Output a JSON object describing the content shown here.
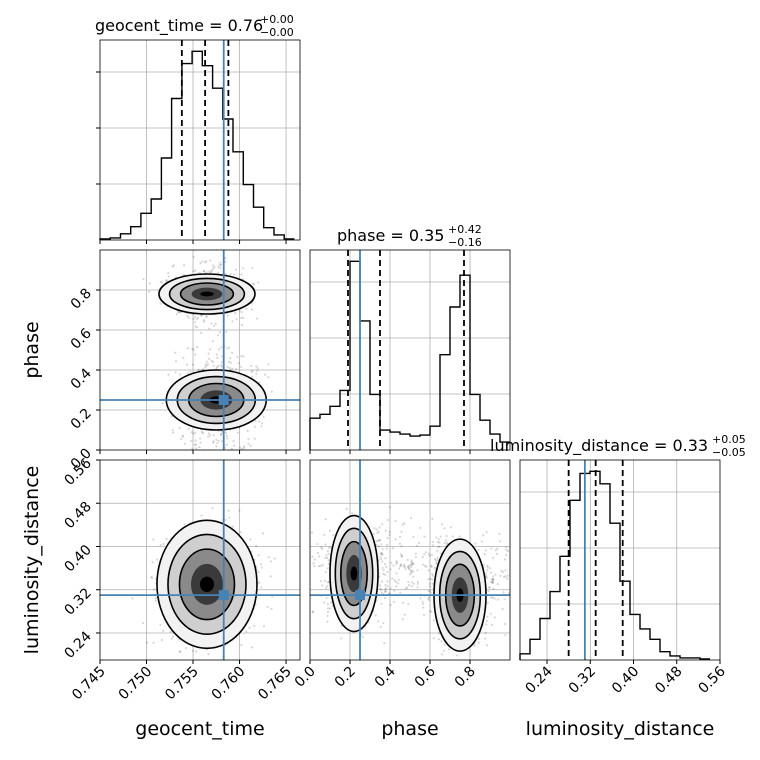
{
  "chart_data": {
    "type": "corner",
    "parameters": [
      "geocent_time",
      "phase",
      "luminosity_distance"
    ],
    "truths": {
      "geocent_time": 0.7583,
      "phase": 0.25,
      "luminosity_distance": 0.31
    },
    "titles": [
      {
        "param": "geocent_time",
        "text": "geocent_time = 0.76",
        "plus": "+0.00",
        "minus": "−0.00"
      },
      {
        "param": "phase",
        "text": "phase = 0.35",
        "plus": "+0.42",
        "minus": "−0.16"
      },
      {
        "param": "luminosity_distance",
        "text": "luminosity_distance = 0.33",
        "plus": "+0.05",
        "minus": "−0.05"
      }
    ],
    "axis_labels": {
      "geocent_time": "geocent_time",
      "phase": "phase",
      "luminosity_distance": "luminosity_distance"
    },
    "ranges": {
      "geocent_time": [
        0.745,
        0.7665
      ],
      "phase": [
        0.0,
        1.0
      ],
      "luminosity_distance": [
        0.19,
        0.56
      ]
    },
    "ticks": {
      "geocent_time": [
        "0.745",
        "0.750",
        "0.755",
        "0.760",
        "0.765"
      ],
      "phase_x": [
        "0.0",
        "0.2",
        "0.4",
        "0.6",
        "0.8"
      ],
      "phase_y": [
        "0.0",
        "0.2",
        "0.4",
        "0.6",
        "0.8"
      ],
      "luminosity_distance_x": [
        "0.24",
        "0.32",
        "0.40",
        "0.48",
        "0.56"
      ],
      "luminosity_distance_y": [
        "0.24",
        "0.32",
        "0.40",
        "0.48",
        "0.56"
      ]
    },
    "histograms": {
      "geocent_time": {
        "bin_edges": [
          0.745,
          0.7461,
          0.7472,
          0.7483,
          0.7494,
          0.7505,
          0.7516,
          0.7527,
          0.7538,
          0.7549,
          0.756,
          0.7571,
          0.7582,
          0.7593,
          0.7604,
          0.7615,
          0.7626,
          0.7637,
          0.7648,
          0.7659
        ],
        "counts": [
          0.005,
          0.01,
          0.03,
          0.065,
          0.13,
          0.2,
          0.4,
          0.69,
          0.86,
          0.92,
          0.85,
          0.74,
          0.59,
          0.43,
          0.27,
          0.16,
          0.06,
          0.025,
          0.005
        ],
        "quantiles": [
          0.7538,
          0.7563,
          0.7588
        ]
      },
      "phase": {
        "bin_edges": [
          0.0,
          0.05,
          0.1,
          0.15,
          0.2,
          0.25,
          0.3,
          0.35,
          0.4,
          0.45,
          0.5,
          0.55,
          0.6,
          0.65,
          0.7,
          0.75,
          0.8,
          0.85,
          0.9,
          0.95,
          1.0
        ],
        "counts": [
          0.16,
          0.18,
          0.22,
          0.3,
          0.95,
          0.65,
          0.28,
          0.1,
          0.09,
          0.08,
          0.07,
          0.075,
          0.12,
          0.48,
          0.72,
          0.88,
          0.28,
          0.15,
          0.08,
          0.04
        ],
        "quantiles": [
          0.19,
          0.35,
          0.77
        ]
      },
      "luminosity_distance": {
        "bin_edges": [
          0.19,
          0.2085,
          0.227,
          0.2455,
          0.264,
          0.2825,
          0.301,
          0.3195,
          0.338,
          0.3565,
          0.375,
          0.3935,
          0.412,
          0.4305,
          0.449,
          0.4675,
          0.486,
          0.5045,
          0.523,
          0.5415
        ],
        "counts": [
          0.03,
          0.1,
          0.2,
          0.33,
          0.5,
          0.77,
          0.9,
          0.91,
          0.85,
          0.66,
          0.38,
          0.22,
          0.15,
          0.1,
          0.04,
          0.02,
          0.01,
          0.01,
          0.005
        ],
        "quantiles": [
          0.28,
          0.33,
          0.38
        ]
      }
    },
    "modes_2d": [
      {
        "x": "geocent_time",
        "y": "phase",
        "centers": [
          [
            0.7565,
            0.78
          ],
          [
            0.7575,
            0.25
          ]
        ]
      },
      {
        "x": "geocent_time",
        "y": "luminosity_distance",
        "centers": [
          [
            0.7565,
            0.33
          ]
        ]
      },
      {
        "x": "phase",
        "y": "luminosity_distance",
        "centers": [
          [
            0.22,
            0.35
          ],
          [
            0.75,
            0.31
          ]
        ]
      }
    ],
    "colors": {
      "truth": "#4682b4",
      "hist": "#000000",
      "grid": "#b0b0b0"
    }
  }
}
